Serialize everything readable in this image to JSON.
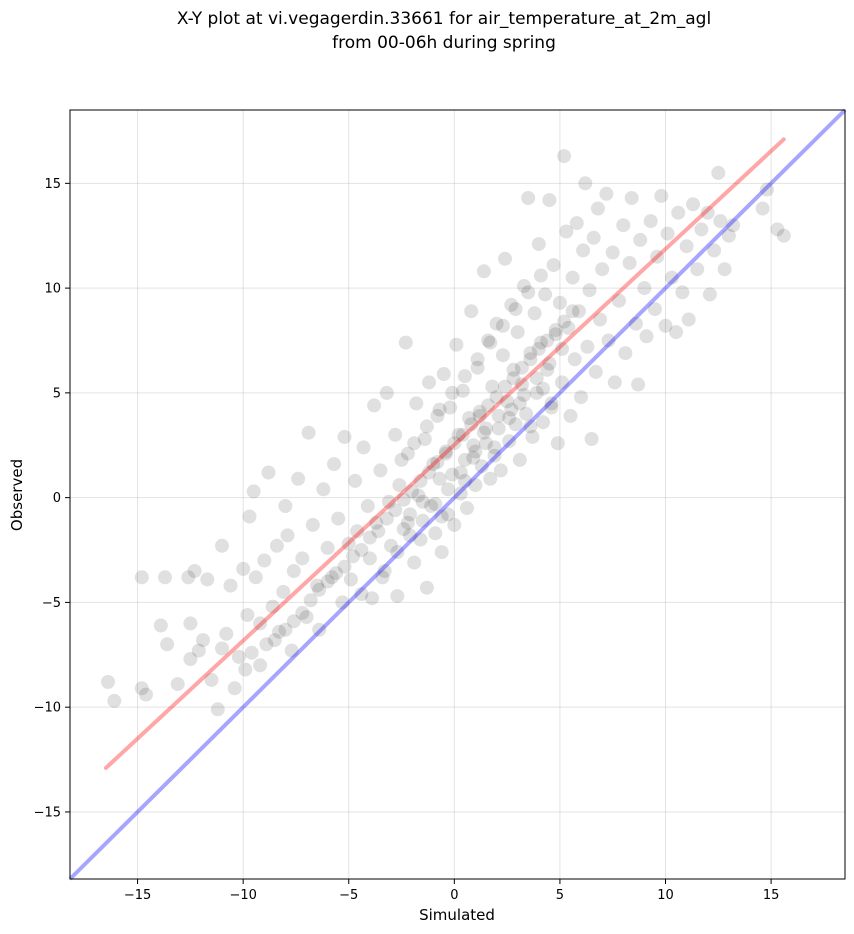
{
  "chart_data": {
    "type": "scatter",
    "title": "X-Y plot at vi.vegagerdin.33661 for air_temperature_at_2m_agl",
    "subtitle": "from 00-06h during spring",
    "xlabel": "Simulated",
    "ylabel": "Observed",
    "xlim": [
      -18.2,
      18.5
    ],
    "ylim": [
      -18.2,
      18.5
    ],
    "xticks": [
      -15,
      -10,
      -5,
      0,
      5,
      10,
      15
    ],
    "yticks": [
      -15,
      -10,
      -5,
      0,
      5,
      10,
      15
    ],
    "xtick_labels": [
      "−15",
      "−10",
      "−5",
      "0",
      "5",
      "10",
      "15"
    ],
    "ytick_labels": [
      "−15",
      "−10",
      "−5",
      "0",
      "5",
      "10",
      "15"
    ],
    "grid": true,
    "colors": {
      "points": "#000000",
      "fit_line": "#ff0000",
      "identity_line": "#0000ff"
    },
    "points": [
      [
        -16.4,
        -8.8
      ],
      [
        -16.1,
        -9.7
      ],
      [
        -14.8,
        -3.8
      ],
      [
        -14.8,
        -9.1
      ],
      [
        -14.6,
        -9.4
      ],
      [
        -13.9,
        -6.1
      ],
      [
        -13.7,
        -3.8
      ],
      [
        -13.6,
        -7.0
      ],
      [
        -13.1,
        -8.9
      ],
      [
        -12.6,
        -3.8
      ],
      [
        -12.5,
        -6.0
      ],
      [
        -12.5,
        -7.7
      ],
      [
        -12.3,
        -3.5
      ],
      [
        -12.1,
        -7.3
      ],
      [
        -11.9,
        -6.8
      ],
      [
        -11.7,
        -3.9
      ],
      [
        -11.5,
        -8.7
      ],
      [
        -11.2,
        -10.1
      ],
      [
        -11.0,
        -7.2
      ],
      [
        -11.0,
        -2.3
      ],
      [
        -10.8,
        -6.5
      ],
      [
        -10.6,
        -4.2
      ],
      [
        -10.4,
        -9.1
      ],
      [
        -10.2,
        -7.6
      ],
      [
        -10.0,
        -3.4
      ],
      [
        -9.8,
        -5.6
      ],
      [
        -9.7,
        -0.9
      ],
      [
        -9.5,
        0.3
      ],
      [
        -9.4,
        -3.8
      ],
      [
        -9.2,
        -6.0
      ],
      [
        -9.0,
        -3.0
      ],
      [
        -8.8,
        1.2
      ],
      [
        -8.6,
        -5.2
      ],
      [
        -8.4,
        -2.3
      ],
      [
        -8.3,
        -6.4
      ],
      [
        -8.1,
        -4.5
      ],
      [
        -8.0,
        -0.4
      ],
      [
        -7.9,
        -1.8
      ],
      [
        -7.7,
        -7.3
      ],
      [
        -7.6,
        -3.5
      ],
      [
        -7.4,
        0.9
      ],
      [
        -7.2,
        -2.9
      ],
      [
        -7.0,
        -5.7
      ],
      [
        -6.9,
        3.1
      ],
      [
        -6.7,
        -1.3
      ],
      [
        -6.5,
        -4.2
      ],
      [
        -6.4,
        -6.3
      ],
      [
        -6.2,
        0.4
      ],
      [
        -6.0,
        -2.4
      ],
      [
        -5.8,
        -3.8
      ],
      [
        -5.7,
        1.6
      ],
      [
        -5.5,
        -1.0
      ],
      [
        -5.3,
        -5.0
      ],
      [
        -5.2,
        2.9
      ],
      [
        -5.0,
        -2.2
      ],
      [
        -4.9,
        -3.9
      ],
      [
        -4.7,
        0.8
      ],
      [
        -4.6,
        -1.6
      ],
      [
        -4.4,
        -4.6
      ],
      [
        -4.3,
        2.4
      ],
      [
        -4.1,
        -0.4
      ],
      [
        -4.0,
        -2.9
      ],
      [
        -3.8,
        4.4
      ],
      [
        -3.7,
        -1.2
      ],
      [
        -3.5,
        1.3
      ],
      [
        -3.4,
        -3.8
      ],
      [
        -3.2,
        5.0
      ],
      [
        -3.1,
        -0.2
      ],
      [
        -3.0,
        -2.3
      ],
      [
        -2.8,
        3.0
      ],
      [
        -2.7,
        -4.7
      ],
      [
        -2.6,
        0.6
      ],
      [
        -2.4,
        -1.5
      ],
      [
        -2.3,
        7.4
      ],
      [
        -2.2,
        2.1
      ],
      [
        -2.1,
        -0.8
      ],
      [
        -1.9,
        -3.1
      ],
      [
        -1.8,
        4.5
      ],
      [
        -1.7,
        0.1
      ],
      [
        -1.6,
        -2.0
      ],
      [
        -1.4,
        2.8
      ],
      [
        -1.3,
        -4.3
      ],
      [
        -1.2,
        5.5
      ],
      [
        -1.1,
        -0.4
      ],
      [
        -1.0,
        1.6
      ],
      [
        -0.9,
        -1.7
      ],
      [
        -0.8,
        3.9
      ],
      [
        -0.7,
        0.9
      ],
      [
        -0.6,
        -2.6
      ],
      [
        -0.5,
        5.9
      ],
      [
        -0.4,
        2.2
      ],
      [
        -0.3,
        -0.8
      ],
      [
        -0.2,
        4.3
      ],
      [
        -0.1,
        1.1
      ],
      [
        0.0,
        -1.3
      ],
      [
        0.1,
        7.3
      ],
      [
        0.2,
        3.0
      ],
      [
        0.3,
        0.2
      ],
      [
        0.4,
        5.1
      ],
      [
        0.5,
        1.8
      ],
      [
        0.6,
        -0.5
      ],
      [
        0.7,
        3.8
      ],
      [
        0.8,
        8.9
      ],
      [
        0.9,
        2.5
      ],
      [
        1.0,
        0.6
      ],
      [
        1.1,
        6.2
      ],
      [
        1.2,
        4.1
      ],
      [
        1.3,
        1.5
      ],
      [
        1.4,
        10.8
      ],
      [
        1.5,
        3.3
      ],
      [
        1.6,
        7.5
      ],
      [
        1.7,
        0.9
      ],
      [
        1.8,
        5.3
      ],
      [
        1.9,
        2.4
      ],
      [
        2.0,
        8.3
      ],
      [
        2.1,
        3.9
      ],
      [
        2.2,
        1.3
      ],
      [
        2.3,
        6.8
      ],
      [
        2.4,
        11.4
      ],
      [
        2.5,
        4.6
      ],
      [
        2.6,
        2.7
      ],
      [
        2.7,
        9.2
      ],
      [
        2.8,
        6.1
      ],
      [
        2.9,
        3.5
      ],
      [
        3.0,
        7.9
      ],
      [
        3.1,
        1.8
      ],
      [
        3.2,
        5.4
      ],
      [
        3.3,
        10.1
      ],
      [
        3.4,
        4.0
      ],
      [
        3.5,
        14.3
      ],
      [
        3.6,
        6.9
      ],
      [
        3.7,
        2.9
      ],
      [
        3.8,
        8.8
      ],
      [
        3.9,
        5.0
      ],
      [
        4.0,
        12.1
      ],
      [
        4.1,
        7.4
      ],
      [
        4.2,
        3.6
      ],
      [
        4.3,
        9.7
      ],
      [
        4.4,
        6.1
      ],
      [
        4.5,
        14.2
      ],
      [
        4.6,
        4.5
      ],
      [
        4.7,
        11.1
      ],
      [
        4.8,
        7.8
      ],
      [
        4.9,
        2.6
      ],
      [
        5.0,
        9.3
      ],
      [
        5.1,
        5.5
      ],
      [
        5.2,
        16.3
      ],
      [
        5.3,
        12.7
      ],
      [
        5.4,
        8.1
      ],
      [
        5.5,
        3.9
      ],
      [
        5.6,
        10.5
      ],
      [
        5.7,
        6.6
      ],
      [
        5.8,
        13.1
      ],
      [
        5.9,
        8.9
      ],
      [
        6.0,
        4.8
      ],
      [
        6.1,
        11.8
      ],
      [
        6.2,
        15.0
      ],
      [
        6.3,
        7.2
      ],
      [
        6.4,
        9.9
      ],
      [
        6.5,
        2.8
      ],
      [
        6.6,
        12.4
      ],
      [
        6.7,
        6.0
      ],
      [
        6.8,
        13.8
      ],
      [
        6.9,
        8.5
      ],
      [
        7.0,
        10.9
      ],
      [
        7.2,
        14.5
      ],
      [
        7.3,
        7.5
      ],
      [
        7.5,
        11.7
      ],
      [
        7.6,
        5.5
      ],
      [
        7.8,
        9.4
      ],
      [
        8.0,
        13.0
      ],
      [
        8.1,
        6.9
      ],
      [
        8.3,
        11.2
      ],
      [
        8.4,
        14.3
      ],
      [
        8.6,
        8.3
      ],
      [
        8.7,
        5.4
      ],
      [
        8.8,
        12.3
      ],
      [
        9.0,
        10.0
      ],
      [
        9.1,
        7.7
      ],
      [
        9.3,
        13.2
      ],
      [
        9.5,
        9.0
      ],
      [
        9.6,
        11.5
      ],
      [
        9.8,
        14.4
      ],
      [
        10.0,
        8.2
      ],
      [
        10.1,
        12.6
      ],
      [
        10.3,
        10.5
      ],
      [
        10.5,
        7.9
      ],
      [
        10.6,
        13.6
      ],
      [
        10.8,
        9.8
      ],
      [
        11.0,
        12.0
      ],
      [
        11.1,
        8.5
      ],
      [
        11.3,
        14.0
      ],
      [
        11.5,
        10.9
      ],
      [
        11.7,
        12.8
      ],
      [
        12.0,
        13.6
      ],
      [
        12.1,
        9.7
      ],
      [
        12.3,
        11.8
      ],
      [
        12.5,
        15.5
      ],
      [
        12.6,
        13.2
      ],
      [
        12.8,
        10.9
      ],
      [
        13.0,
        12.5
      ],
      [
        13.2,
        13.0
      ],
      [
        14.6,
        13.8
      ],
      [
        14.8,
        14.7
      ],
      [
        15.3,
        12.8
      ],
      [
        15.6,
        12.5
      ],
      [
        -9.9,
        -8.2
      ],
      [
        -9.6,
        -7.4
      ],
      [
        -9.2,
        -8.0
      ],
      [
        -8.9,
        -7.0
      ],
      [
        -8.5,
        -6.8
      ],
      [
        -8.0,
        -6.3
      ],
      [
        -7.6,
        -5.9
      ],
      [
        -7.2,
        -5.5
      ],
      [
        -6.8,
        -4.9
      ],
      [
        -6.4,
        -4.4
      ],
      [
        -6.0,
        -4.0
      ],
      [
        -5.6,
        -3.6
      ],
      [
        -5.2,
        -3.3
      ],
      [
        -4.8,
        -2.8
      ],
      [
        -4.4,
        -2.5
      ],
      [
        -4.0,
        -1.9
      ],
      [
        -3.6,
        -1.6
      ],
      [
        -3.2,
        -1.0
      ],
      [
        -2.8,
        -0.6
      ],
      [
        -2.4,
        -0.1
      ],
      [
        -2.0,
        0.3
      ],
      [
        -1.6,
        0.8
      ],
      [
        -1.2,
        1.2
      ],
      [
        -0.8,
        1.7
      ],
      [
        -0.4,
        2.1
      ],
      [
        0.0,
        2.6
      ],
      [
        0.4,
        3.0
      ],
      [
        0.8,
        3.5
      ],
      [
        1.2,
        3.9
      ],
      [
        1.6,
        4.4
      ],
      [
        2.0,
        4.8
      ],
      [
        2.4,
        5.3
      ],
      [
        2.8,
        5.7
      ],
      [
        3.2,
        6.2
      ],
      [
        3.6,
        6.6
      ],
      [
        4.0,
        7.1
      ],
      [
        4.4,
        7.5
      ],
      [
        4.8,
        8.0
      ],
      [
        5.2,
        8.4
      ],
      [
        5.6,
        8.9
      ],
      [
        -3.9,
        -4.8
      ],
      [
        -3.3,
        -3.5
      ],
      [
        -2.7,
        -2.6
      ],
      [
        -2.1,
        -1.8
      ],
      [
        -1.5,
        -1.1
      ],
      [
        -0.9,
        -0.3
      ],
      [
        -0.3,
        0.4
      ],
      [
        0.3,
        1.2
      ],
      [
        0.9,
        1.9
      ],
      [
        1.5,
        2.6
      ],
      [
        2.1,
        3.3
      ],
      [
        2.7,
        4.2
      ],
      [
        3.3,
        4.9
      ],
      [
        3.9,
        5.7
      ],
      [
        4.5,
        6.4
      ],
      [
        5.1,
        7.1
      ],
      [
        -2.5,
        1.8
      ],
      [
        -1.9,
        2.6
      ],
      [
        -1.3,
        3.4
      ],
      [
        -0.7,
        4.2
      ],
      [
        -0.1,
        5.0
      ],
      [
        0.5,
        5.8
      ],
      [
        1.1,
        6.6
      ],
      [
        1.7,
        7.4
      ],
      [
        2.3,
        8.2
      ],
      [
        2.9,
        9.0
      ],
      [
        3.5,
        9.8
      ],
      [
        4.1,
        10.6
      ],
      [
        1.0,
        2.2
      ],
      [
        1.4,
        3.1
      ],
      [
        1.9,
        2.0
      ],
      [
        2.6,
        3.8
      ],
      [
        3.1,
        4.5
      ],
      [
        3.6,
        3.4
      ],
      [
        4.2,
        5.2
      ],
      [
        4.6,
        4.3
      ],
      [
        0.5,
        0.8
      ],
      [
        -0.6,
        -0.9
      ],
      [
        -1.5,
        -0.2
      ],
      [
        -2.2,
        -1.2
      ]
    ],
    "fit_line": {
      "x": [
        -16.5,
        15.6
      ],
      "y": [
        -12.9,
        17.1
      ]
    },
    "identity_line": {
      "x": [
        -18.2,
        18.5
      ],
      "y": [
        -18.2,
        18.5
      ]
    }
  }
}
